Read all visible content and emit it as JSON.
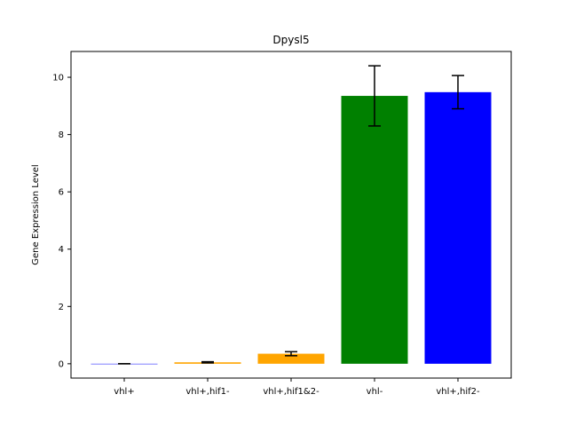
{
  "chart_data": {
    "type": "bar",
    "title": "Dpysl5",
    "xlabel": "",
    "ylabel": "Gene Expression Level",
    "categories": [
      "vhl+",
      "vhl+,hif1-",
      "vhl+,hif1&2-",
      "vhl-",
      "vhl+,hif2-"
    ],
    "values": [
      0.0,
      0.05,
      0.35,
      9.35,
      9.48
    ],
    "errors": [
      0.0,
      0.02,
      0.07,
      1.05,
      0.58
    ],
    "colors": [
      "#0000ff",
      "#ffa500",
      "#ffa500",
      "#008000",
      "#0000ff"
    ],
    "ylim": [
      -0.5,
      10.9
    ],
    "yticks": [
      0,
      2,
      4,
      6,
      8,
      10
    ],
    "grid": false,
    "legend": false
  }
}
